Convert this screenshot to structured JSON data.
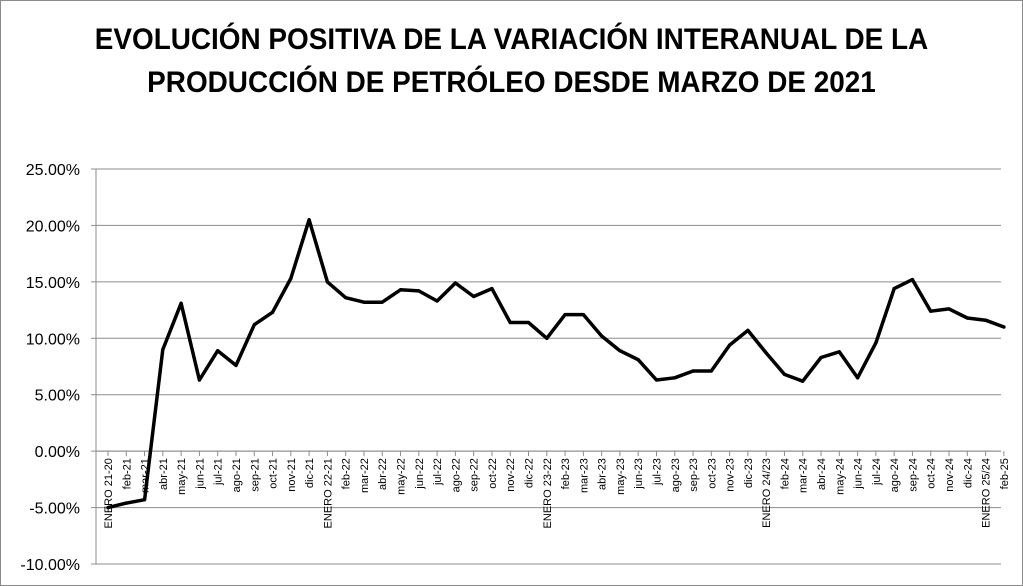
{
  "chart_data": {
    "type": "line",
    "title": "EVOLUCIÓN POSITIVA DE LA VARIACIÓN INTERANUAL DE LA PRODUCCIÓN DE PETRÓLEO DESDE MARZO DE 2021",
    "xlabel": "",
    "ylabel": "",
    "ylim": [
      -0.1,
      0.25
    ],
    "yticks": [
      -0.1,
      -0.05,
      0.0,
      0.05,
      0.1,
      0.15,
      0.2,
      0.25
    ],
    "ytick_labels": [
      "-10.00%",
      "-5.00%",
      "0.00%",
      "5.00%",
      "10.00%",
      "15.00%",
      "20.00%",
      "25.00%"
    ],
    "grid": true,
    "legend": "none",
    "line_color": "#000000",
    "categories": [
      "ENERO 21-20",
      "feb-21",
      "mar-21",
      "abr-21",
      "may-21",
      "jun-21",
      "jul-21",
      "ago-21",
      "sep-21",
      "oct-21",
      "nov-21",
      "dic-21",
      "ENERO 22-21",
      "feb-22",
      "mar-22",
      "abr-22",
      "may-22",
      "jun-22",
      "jul-22",
      "ago-22",
      "sep-22",
      "oct-22",
      "nov-22",
      "dic-22",
      "ENERO 23-22",
      "feb-23",
      "mar-23",
      "abr-23",
      "may-23",
      "jun-23",
      "jul-23",
      "ago-23",
      "sep-23",
      "oct-23",
      "nov-23",
      "dic-23",
      "ENERO 24/23",
      "feb-24",
      "mar-24",
      "abr-24",
      "may-24",
      "jun-24",
      "jul-24",
      "ago-24",
      "sep-24",
      "oct-24",
      "nov-24",
      "dic-24",
      "ENERO 25/24",
      "feb-25"
    ],
    "series": [
      {
        "values": [
          -0.05,
          -0.046,
          -0.043,
          0.09,
          0.131,
          0.063,
          0.089,
          0.076,
          0.112,
          0.123,
          0.153,
          0.205,
          0.15,
          0.136,
          0.132,
          0.132,
          0.143,
          0.142,
          0.133,
          0.149,
          0.137,
          0.144,
          0.114,
          0.114,
          0.1,
          0.121,
          0.121,
          0.102,
          0.089,
          0.081,
          0.063,
          0.065,
          0.071,
          0.071,
          0.094,
          0.107,
          0.087,
          0.068,
          0.062,
          0.083,
          0.088,
          0.065,
          0.096,
          0.144,
          0.152,
          0.124,
          0.126,
          0.118,
          0.116,
          0.11
        ]
      }
    ]
  }
}
